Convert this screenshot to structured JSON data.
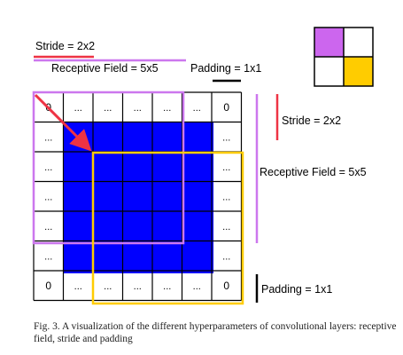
{
  "labels": {
    "stride_top": "Stride = 2x2",
    "receptive_top": "Receptive Field = 5x5",
    "padding_top": "Padding = 1x1",
    "stride_right": "Stride = 2x2",
    "receptive_right": "Receptive Field = 5x5",
    "padding_right": "Padding = 1x1"
  },
  "grid": {
    "rows": 7,
    "cols": 7,
    "corner_label": "0",
    "padding_label": "...",
    "cells": [
      [
        "0",
        "...",
        "...",
        "...",
        "...",
        "...",
        "0"
      ],
      [
        "...",
        "",
        "",
        "",
        "",
        "",
        "..."
      ],
      [
        "...",
        "",
        "",
        "",
        "",
        "",
        "..."
      ],
      [
        "...",
        "",
        "",
        "",
        "",
        "",
        "..."
      ],
      [
        "...",
        "",
        "",
        "",
        "",
        "",
        "..."
      ],
      [
        "...",
        "",
        "",
        "",
        "",
        "",
        "..."
      ],
      [
        "0",
        "...",
        "...",
        "...",
        "...",
        "...",
        "0"
      ]
    ]
  },
  "legend_grid": {
    "rows": 2,
    "cols": 2
  },
  "caption": "Fig. 3.   A visualization of the different hyperparameters of convolutional layers: receptive field, stride and padding",
  "colors": {
    "stride": "#ee3344",
    "receptive": "#cc77ee",
    "padding": "#000000",
    "inner": "#0000ff",
    "second_window": "#ffcc00",
    "legend_first": "#cc66ee",
    "legend_second": "#ffcc00"
  }
}
